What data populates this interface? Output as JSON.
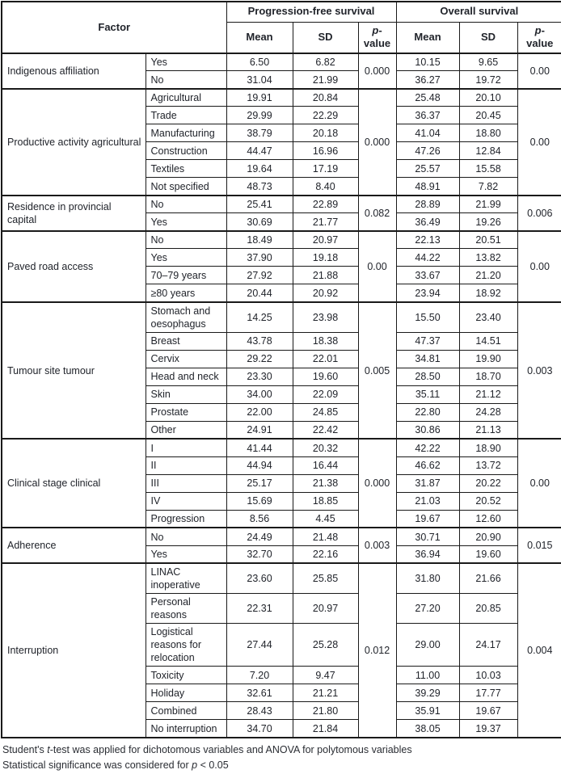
{
  "table": {
    "header": {
      "factor_label": "Factor",
      "groups": [
        {
          "label": "Progression-free survival",
          "columns": [
            "Mean",
            "SD",
            "p-value"
          ]
        },
        {
          "label": "Overall survival",
          "columns": [
            "Mean",
            "SD",
            "p-value"
          ]
        }
      ]
    },
    "groups": [
      {
        "factor": "Indigenous affiliation",
        "pfs_p": "0.000",
        "os_p": "0.00",
        "rows": [
          {
            "category": "Yes",
            "pfs_mean": "6.50",
            "pfs_sd": "6.82",
            "os_mean": "10.15",
            "os_sd": "9.65"
          },
          {
            "category": "No",
            "pfs_mean": "31.04",
            "pfs_sd": "21.99",
            "os_mean": "36.27",
            "os_sd": "19.72"
          }
        ]
      },
      {
        "factor": "Productive activity agricultural",
        "pfs_p": "0.000",
        "os_p": "0.00",
        "rows": [
          {
            "category": "Agricultural",
            "pfs_mean": "19.91",
            "pfs_sd": "20.84",
            "os_mean": "25.48",
            "os_sd": "20.10"
          },
          {
            "category": "Trade",
            "pfs_mean": "29.99",
            "pfs_sd": "22.29",
            "os_mean": "36.37",
            "os_sd": "20.45"
          },
          {
            "category": "Manufacturing",
            "pfs_mean": "38.79",
            "pfs_sd": "20.18",
            "os_mean": "41.04",
            "os_sd": "18.80"
          },
          {
            "category": "Construction",
            "pfs_mean": "44.47",
            "pfs_sd": "16.96",
            "os_mean": "47.26",
            "os_sd": "12.84"
          },
          {
            "category": "Textiles",
            "pfs_mean": "19.64",
            "pfs_sd": "17.19",
            "os_mean": "25.57",
            "os_sd": "15.58"
          },
          {
            "category": "Not specified",
            "pfs_mean": "48.73",
            "pfs_sd": "8.40",
            "os_mean": "48.91",
            "os_sd": "7.82"
          }
        ]
      },
      {
        "factor": "Residence in provincial capital",
        "pfs_p": "0.082",
        "os_p": "0.006",
        "rows": [
          {
            "category": "No",
            "pfs_mean": "25.41",
            "pfs_sd": "22.89",
            "os_mean": "28.89",
            "os_sd": "21.99"
          },
          {
            "category": "Yes",
            "pfs_mean": "30.69",
            "pfs_sd": "21.77",
            "os_mean": "36.49",
            "os_sd": "19.26"
          }
        ]
      },
      {
        "factor": "Paved road access",
        "pfs_p": "0.00",
        "os_p": "0.00",
        "rows": [
          {
            "category": "No",
            "pfs_mean": "18.49",
            "pfs_sd": "20.97",
            "os_mean": "22.13",
            "os_sd": "20.51"
          },
          {
            "category": "Yes",
            "pfs_mean": "37.90",
            "pfs_sd": "19.18",
            "os_mean": "44.22",
            "os_sd": "13.82"
          },
          {
            "category": "70–79 years",
            "pfs_mean": "27.92",
            "pfs_sd": "21.88",
            "os_mean": "33.67",
            "os_sd": "21.20"
          },
          {
            "category": "≥80 years",
            "pfs_mean": "20.44",
            "pfs_sd": "20.92",
            "os_mean": "23.94",
            "os_sd": "18.92"
          }
        ]
      },
      {
        "factor": "Tumour site tumour",
        "pfs_p": "0.005",
        "os_p": "0.003",
        "rows": [
          {
            "category": "Stomach and oesophagus",
            "pfs_mean": "14.25",
            "pfs_sd": "23.98",
            "os_mean": "15.50",
            "os_sd": "23.40"
          },
          {
            "category": "Breast",
            "pfs_mean": "43.78",
            "pfs_sd": "18.38",
            "os_mean": "47.37",
            "os_sd": "14.51"
          },
          {
            "category": "Cervix",
            "pfs_mean": "29.22",
            "pfs_sd": "22.01",
            "os_mean": "34.81",
            "os_sd": "19.90"
          },
          {
            "category": "Head and neck",
            "pfs_mean": "23.30",
            "pfs_sd": "19.60",
            "os_mean": "28.50",
            "os_sd": "18.70"
          },
          {
            "category": "Skin",
            "pfs_mean": "34.00",
            "pfs_sd": "22.09",
            "os_mean": "35.11",
            "os_sd": "21.12"
          },
          {
            "category": "Prostate",
            "pfs_mean": "22.00",
            "pfs_sd": "24.85",
            "os_mean": "22.80",
            "os_sd": "24.28"
          },
          {
            "category": "Other",
            "pfs_mean": "24.91",
            "pfs_sd": "22.42",
            "os_mean": "30.86",
            "os_sd": "21.13"
          }
        ]
      },
      {
        "factor": "Clinical stage clinical",
        "pfs_p": "0.000",
        "os_p": "0.00",
        "rows": [
          {
            "category": "I",
            "pfs_mean": "41.44",
            "pfs_sd": "20.32",
            "os_mean": "42.22",
            "os_sd": "18.90"
          },
          {
            "category": "II",
            "pfs_mean": "44.94",
            "pfs_sd": "16.44",
            "os_mean": "46.62",
            "os_sd": "13.72"
          },
          {
            "category": "III",
            "pfs_mean": "25.17",
            "pfs_sd": "21.38",
            "os_mean": "31.87",
            "os_sd": "20.22"
          },
          {
            "category": "IV",
            "pfs_mean": "15.69",
            "pfs_sd": "18.85",
            "os_mean": "21.03",
            "os_sd": "20.52"
          },
          {
            "category": "Progression",
            "pfs_mean": "8.56",
            "pfs_sd": "4.45",
            "os_mean": "19.67",
            "os_sd": "12.60"
          }
        ]
      },
      {
        "factor": "Adherence",
        "pfs_p": "0.003",
        "os_p": "0.015",
        "rows": [
          {
            "category": "No",
            "pfs_mean": "24.49",
            "pfs_sd": "21.48",
            "os_mean": "30.71",
            "os_sd": "20.90"
          },
          {
            "category": "Yes",
            "pfs_mean": "32.70",
            "pfs_sd": "22.16",
            "os_mean": "36.94",
            "os_sd": "19.60"
          }
        ]
      },
      {
        "factor": "Interruption",
        "pfs_p": "0.012",
        "os_p": "0.004",
        "rows": [
          {
            "category": "LINAC inoperative",
            "pfs_mean": "23.60",
            "pfs_sd": "25.85",
            "os_mean": "31.80",
            "os_sd": "21.66"
          },
          {
            "category": "Personal reasons",
            "pfs_mean": "22.31",
            "pfs_sd": "20.97",
            "os_mean": "27.20",
            "os_sd": "20.85"
          },
          {
            "category": "Logistical reasons for relocation",
            "pfs_mean": "27.44",
            "pfs_sd": "25.28",
            "os_mean": "29.00",
            "os_sd": "24.17"
          },
          {
            "category": "Toxicity",
            "pfs_mean": "7.20",
            "pfs_sd": "9.47",
            "os_mean": "11.00",
            "os_sd": "10.03"
          },
          {
            "category": "Holiday",
            "pfs_mean": "32.61",
            "pfs_sd": "21.21",
            "os_mean": "39.29",
            "os_sd": "17.77"
          },
          {
            "category": "Combined",
            "pfs_mean": "28.43",
            "pfs_sd": "21.80",
            "os_mean": "35.91",
            "os_sd": "19.67"
          },
          {
            "category": "No interruption",
            "pfs_mean": "34.70",
            "pfs_sd": "21.84",
            "os_mean": "38.05",
            "os_sd": "19.37"
          }
        ]
      }
    ]
  },
  "footnotes": [
    {
      "segments": [
        {
          "t": "Student's ",
          "i": false
        },
        {
          "t": "t",
          "i": true
        },
        {
          "t": "-test was applied for dichotomous variables and ANOVA for polytomous variables",
          "i": false
        }
      ]
    },
    {
      "segments": [
        {
          "t": "Statistical significance was considered for ",
          "i": false
        },
        {
          "t": "p",
          "i": true
        },
        {
          "t": " < 0.05",
          "i": false
        }
      ]
    }
  ],
  "colors": {
    "border": "#1a1a1a",
    "text": "#21242b",
    "background": "#ffffff"
  }
}
